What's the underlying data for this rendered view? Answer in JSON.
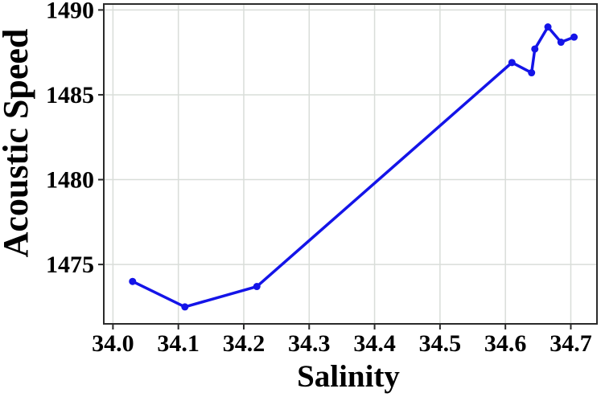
{
  "chart_data": {
    "type": "line",
    "title": "",
    "xlabel": "Salinity",
    "ylabel": "Acoustic Speed",
    "x": [
      34.03,
      34.11,
      34.22,
      34.61,
      34.64,
      34.645,
      34.665,
      34.685,
      34.705
    ],
    "y": [
      1474.0,
      1472.5,
      1473.7,
      1486.9,
      1486.3,
      1487.7,
      1489.0,
      1488.1,
      1488.4
    ],
    "xlim": [
      33.986,
      34.74
    ],
    "ylim": [
      1471.5,
      1490.35
    ],
    "xticks": [
      34.0,
      34.1,
      34.2,
      34.3,
      34.4,
      34.5,
      34.6,
      34.7
    ],
    "xtick_labels": [
      "34.0",
      "34.1",
      "34.2",
      "34.3",
      "34.4",
      "34.5",
      "34.6",
      "34.7"
    ],
    "yticks": [
      1475,
      1480,
      1485,
      1490
    ],
    "ytick_labels": [
      "1475",
      "1480",
      "1485",
      "1490"
    ],
    "grid": true,
    "legend": null,
    "line_color": "#1414e8",
    "marker": "circle",
    "marker_color": "#1414e8",
    "grid_color": "#d9ddd9",
    "axis_color": "#2b2b2b",
    "tick_label_color": "#000000"
  }
}
